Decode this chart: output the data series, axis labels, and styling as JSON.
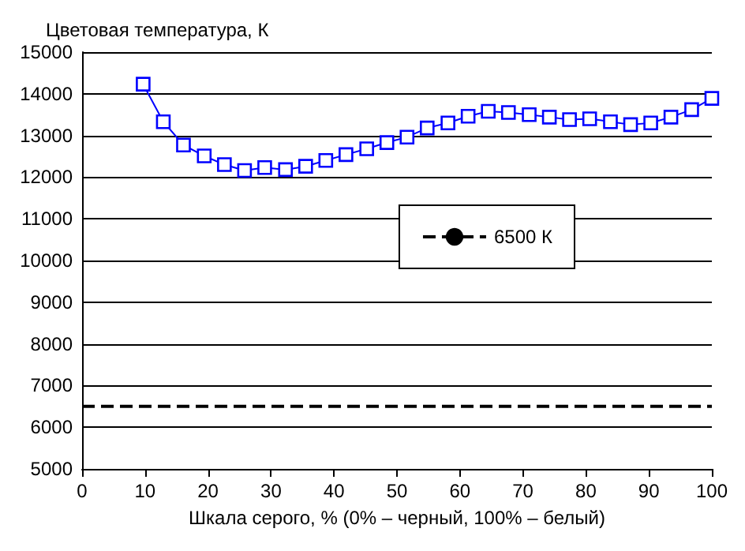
{
  "chart_data": {
    "type": "line",
    "title": "Цветовая температура, К",
    "xlabel": "Шкала серого, % (0% – черный, 100% – белый)",
    "x": [
      9.7,
      12.9,
      16.1,
      19.4,
      22.6,
      25.8,
      29,
      32.3,
      35.5,
      38.7,
      41.9,
      45.2,
      48.4,
      51.6,
      54.8,
      58.1,
      61.3,
      64.5,
      67.7,
      71,
      74.2,
      77.4,
      80.6,
      83.9,
      87.1,
      90.3,
      93.5,
      96.8,
      100
    ],
    "series": [
      {
        "color": "#0000ff",
        "values": [
          14230,
          13330,
          12770,
          12510,
          12300,
          12160,
          12230,
          12180,
          12260,
          12400,
          12540,
          12680,
          12830,
          12960,
          13180,
          13300,
          13460,
          13580,
          13550,
          13500,
          13440,
          13380,
          13400,
          13330,
          13260,
          13300,
          13440,
          13620,
          13890
        ]
      }
    ],
    "xlim": [
      0,
      100
    ],
    "xticks": [
      0,
      10,
      20,
      30,
      40,
      50,
      60,
      70,
      80,
      90,
      100
    ],
    "ylim": [
      5000,
      15000
    ],
    "yticks": [
      5000,
      6000,
      7000,
      8000,
      9000,
      10000,
      11000,
      12000,
      13000,
      14000,
      15000
    ],
    "ref_lines": [
      {
        "axis": "y",
        "value": 6500,
        "label": "6500 К",
        "color": "#000000",
        "line_style": "dashed"
      }
    ],
    "grid": "y",
    "legend": "right",
    "marker": "square",
    "line_style": "solid"
  }
}
